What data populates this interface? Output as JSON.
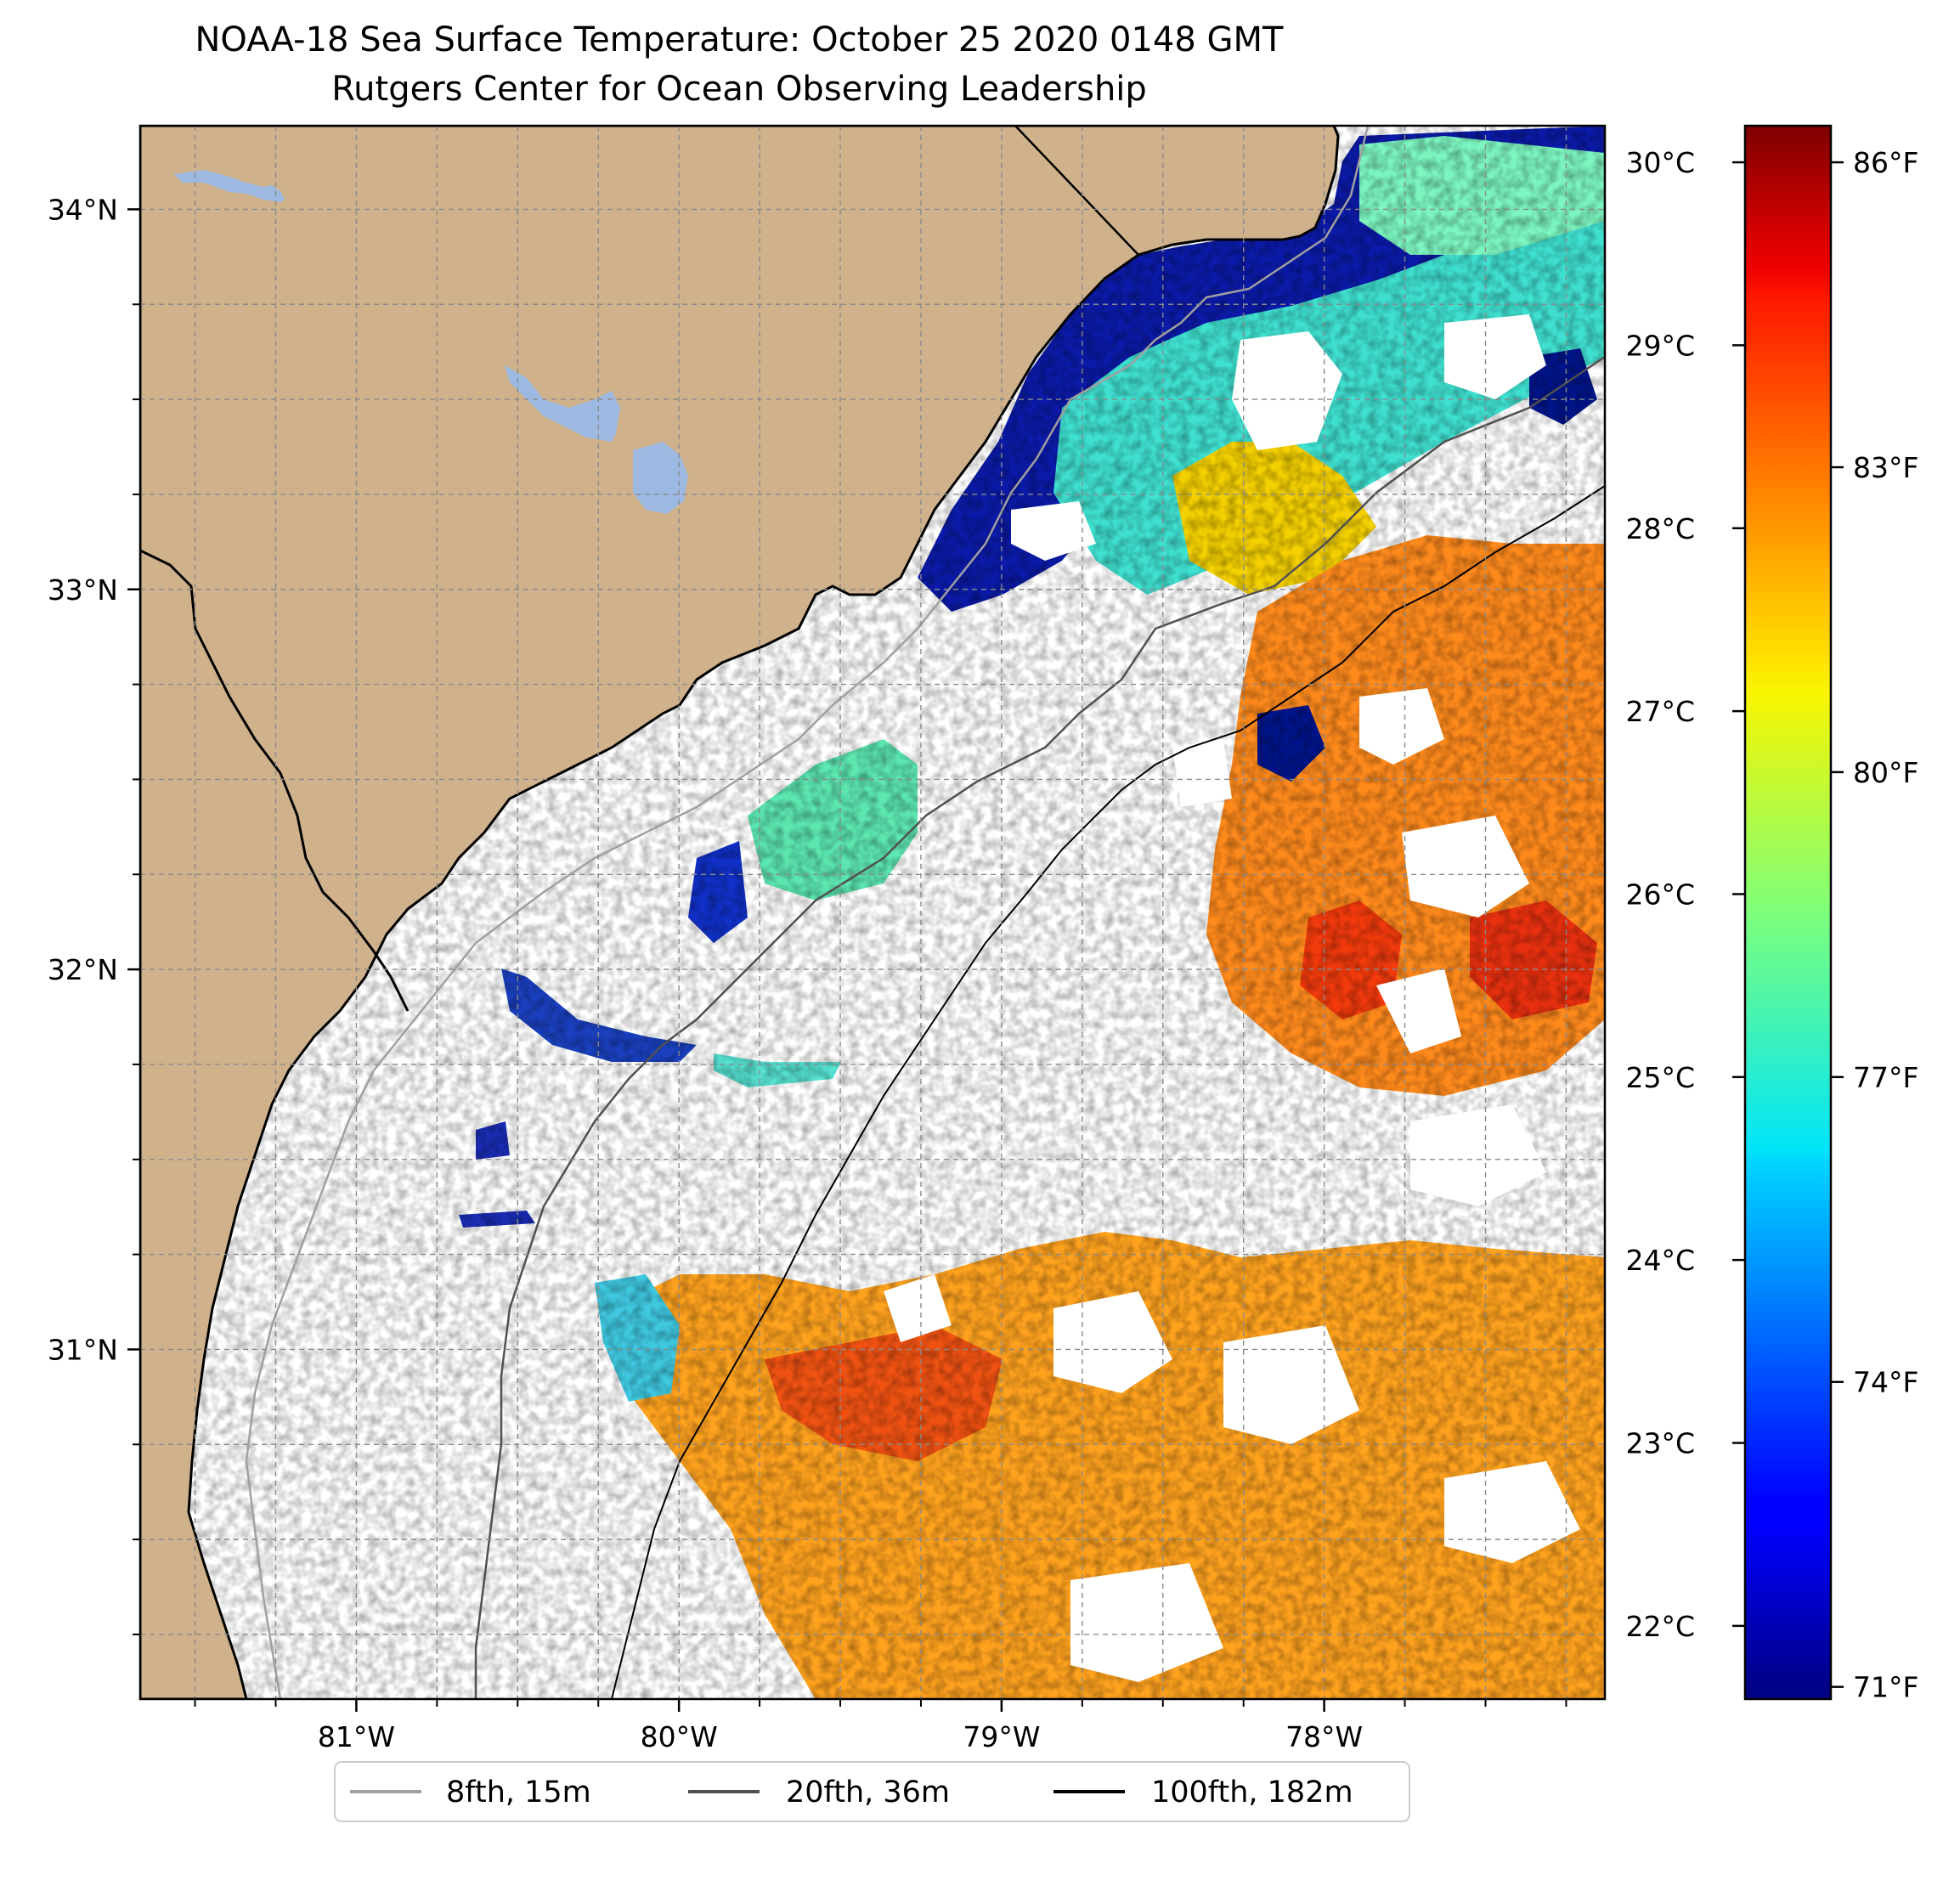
{
  "title": {
    "line1": "NOAA-18 Sea Surface Temperature: October 25 2020 0148 GMT",
    "line2": "Rutgers Center for Ocean Observing Leadership"
  },
  "map": {
    "lon_range": [
      -81.67,
      -77.13
    ],
    "lat_range": [
      30.08,
      34.22
    ],
    "land_color": "#CFB28B",
    "lake_color": "#9DB9E1",
    "ocean_color": "#FFFFFF",
    "gridlines": true,
    "lon_ticks": [
      {
        "value": -81,
        "label": "81°W"
      },
      {
        "value": -80,
        "label": "80°W"
      },
      {
        "value": -79,
        "label": "79°W"
      },
      {
        "value": -78,
        "label": "78°W"
      }
    ],
    "lat_ticks": [
      {
        "value": 34,
        "label": "34°N"
      },
      {
        "value": 33,
        "label": "33°N"
      },
      {
        "value": 32,
        "label": "32°N"
      },
      {
        "value": 31,
        "label": "31°N"
      }
    ]
  },
  "colorbar": {
    "colormap": "jet",
    "celsius_range": [
      21.6,
      30.2
    ],
    "celsius_ticks": [
      {
        "value": 30,
        "label": "30°C"
      },
      {
        "value": 29,
        "label": "29°C"
      },
      {
        "value": 28,
        "label": "28°C"
      },
      {
        "value": 27,
        "label": "27°C"
      },
      {
        "value": 26,
        "label": "26°C"
      },
      {
        "value": 25,
        "label": "25°C"
      },
      {
        "value": 24,
        "label": "24°C"
      },
      {
        "value": 23,
        "label": "23°C"
      },
      {
        "value": 22,
        "label": "22°C"
      }
    ],
    "fahrenheit_ticks": [
      {
        "value": 86,
        "label": "86°F"
      },
      {
        "value": 83,
        "label": "83°F"
      },
      {
        "value": 80,
        "label": "80°F"
      },
      {
        "value": 77,
        "label": "77°F"
      },
      {
        "value": 74,
        "label": "74°F"
      },
      {
        "value": 71,
        "label": "71°F"
      }
    ]
  },
  "legend": {
    "placement": "bottom-center",
    "items": [
      {
        "label": "8fth, 15m",
        "color": "#A0A0A0"
      },
      {
        "label": "20fth, 36m",
        "color": "#505050"
      },
      {
        "label": "100fth, 182m",
        "color": "#000000"
      }
    ]
  }
}
